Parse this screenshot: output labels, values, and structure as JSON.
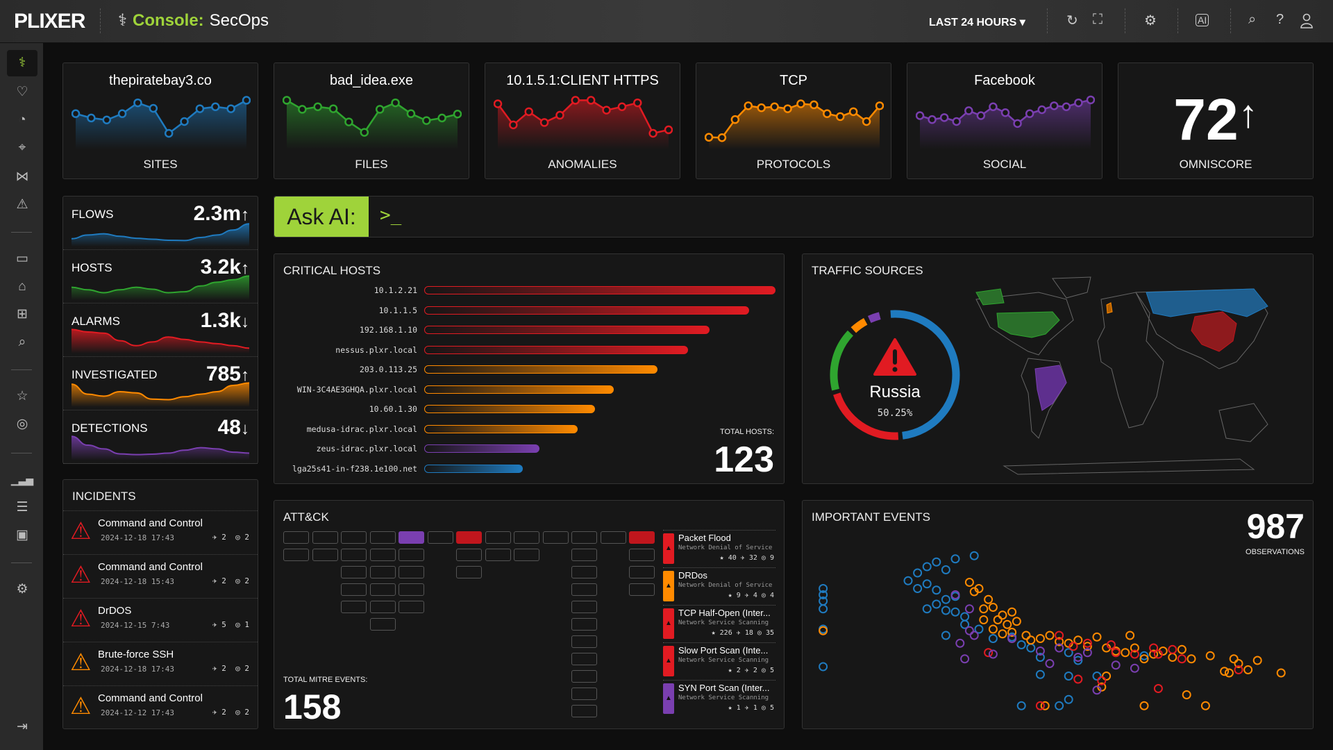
{
  "header": {
    "logo": "PLIXER",
    "console_prefix": "Console:",
    "console_name": "SecOps",
    "time_range": "LAST 24 HOURS ▾",
    "icons": [
      "refresh-icon",
      "fullscreen-icon",
      "gear-icon",
      "ai-chip-icon",
      "search-icon",
      "help-icon",
      "user-icon"
    ]
  },
  "sidebar": {
    "icons": [
      "stethoscope-icon",
      "heart-monitor-icon",
      "gauge-icon",
      "map-pin-icon",
      "network-icon",
      "warning-icon",
      "monitor-icon",
      "router-icon",
      "sitemap-icon",
      "search-icon",
      "star-icon",
      "radar-icon",
      "chart-icon",
      "list-icon",
      "calendar-icon",
      "user-gear-icon"
    ],
    "collapse": "⇥"
  },
  "tiles": [
    {
      "name": "thepiratebay3.co",
      "label": "SITES",
      "color": "#1f7bc0",
      "values": [
        160,
        138,
        128,
        160,
        215,
        187,
        60,
        120,
        185,
        195,
        185,
        228
      ]
    },
    {
      "name": "bad_idea.exe",
      "label": "FILES",
      "color": "#2fa52f",
      "values": [
        228,
        182,
        195,
        185,
        118,
        65,
        182,
        215,
        160,
        125,
        138,
        158
      ]
    },
    {
      "name": "10.1.5.1:CLIENT HTTPS",
      "label": "ANOMALIES",
      "color": "#e11b22",
      "values": [
        210,
        103,
        170,
        115,
        152,
        228,
        228,
        178,
        195,
        215,
        60,
        78
      ]
    },
    {
      "name": "TCP",
      "label": "PROTOCOLS",
      "color": "#ff8a00",
      "values": [
        40,
        38,
        130,
        200,
        190,
        195,
        185,
        210,
        205,
        160,
        145,
        170,
        120,
        200
      ]
    },
    {
      "name": "Facebook",
      "label": "SOCIAL",
      "color": "#7a3fb0",
      "values": [
        150,
        130,
        140,
        120,
        175,
        150,
        195,
        165,
        110,
        160,
        180,
        200,
        195,
        215,
        230
      ]
    }
  ],
  "omniscore": {
    "value": "72",
    "arrow": "↑",
    "label": "OMNISCORE"
  },
  "stats": [
    {
      "label": "FLOWS",
      "value": "2.3m",
      "arrow": "↑",
      "color": "#1f7bc0",
      "values": [
        20,
        35,
        40,
        30,
        22,
        18,
        14,
        13,
        25,
        35,
        55,
        80
      ]
    },
    {
      "label": "HOSTS",
      "value": "3.2k",
      "arrow": "↑",
      "color": "#2fa52f",
      "values": [
        40,
        30,
        18,
        30,
        40,
        32,
        18,
        22,
        45,
        60,
        70,
        85
      ]
    },
    {
      "label": "ALARMS",
      "value": "1.3k",
      "arrow": "↓",
      "color": "#e11b22",
      "values": [
        85,
        75,
        70,
        40,
        20,
        35,
        55,
        45,
        35,
        28,
        20,
        10
      ]
    },
    {
      "label": "INVESTIGATED",
      "value": "785",
      "arrow": "↑",
      "color": "#ff8a00",
      "values": [
        80,
        40,
        32,
        50,
        45,
        20,
        18,
        30,
        40,
        50,
        75,
        85
      ]
    },
    {
      "label": "DETECTIONS",
      "value": "48",
      "arrow": "↓",
      "color": "#7a3fb0",
      "values": [
        85,
        50,
        35,
        15,
        12,
        14,
        18,
        30,
        40,
        35,
        22,
        18
      ]
    }
  ],
  "incidents": {
    "title": "INCIDENTS",
    "items": [
      {
        "name": "Command and Control",
        "date": "2024-12-18 17:43",
        "severity": "#e11b22",
        "a": "2",
        "b": "2"
      },
      {
        "name": "Command and Control",
        "date": "2024-12-18 15:43",
        "severity": "#e11b22",
        "a": "2",
        "b": "2"
      },
      {
        "name": "DrDOS",
        "date": "2024-12-15 7:43",
        "severity": "#e11b22",
        "a": "5",
        "b": "1"
      },
      {
        "name": "Brute-force SSH",
        "date": "2024-12-18 17:43",
        "severity": "#ff8a00",
        "a": "2",
        "b": "2"
      },
      {
        "name": "Command and Control",
        "date": "2024-12-12 17:43",
        "severity": "#ff8a00",
        "a": "2",
        "b": "2"
      }
    ]
  },
  "ask_ai": {
    "label": "Ask AI:",
    "prompt": ">_"
  },
  "critical_hosts": {
    "title": "CRITICAL HOSTS",
    "total_label": "TOTAL HOSTS:",
    "total": "123",
    "hosts": [
      {
        "name": "10.1.2.21",
        "score": 100,
        "color": "#e11b22"
      },
      {
        "name": "10.1.1.5",
        "score": 92.5,
        "color": "#e11b22"
      },
      {
        "name": "192.168.1.10",
        "score": 81.3,
        "color": "#e11b22"
      },
      {
        "name": "nessus.plxr.local",
        "score": 75,
        "color": "#e11b22"
      },
      {
        "name": "203.0.113.25",
        "score": 66.4,
        "color": "#ff8a00"
      },
      {
        "name": "WIN-3C4AE3GHQA.plxr.local",
        "score": 54,
        "color": "#ff8a00"
      },
      {
        "name": "10.60.1.30",
        "score": 48.7,
        "color": "#ff8a00"
      },
      {
        "name": "medusa-idrac.plxr.local",
        "score": 43.6,
        "color": "#ff8a00"
      },
      {
        "name": "zeus-idrac.plxr.local",
        "score": 32.8,
        "color": "#7a3fb0"
      },
      {
        "name": "lga25s41-in-f238.1e100.net",
        "score": 28,
        "color": "#1f7bc0"
      }
    ]
  },
  "traffic_sources": {
    "title": "TRAFFIC SOURCES",
    "top_country": "Russia",
    "top_percent": "50.25%",
    "segments": [
      {
        "country": "Russia",
        "percent": 50.25,
        "color": "#1f7bc0"
      },
      {
        "country": "China",
        "percent": 22,
        "color": "#e11b22"
      },
      {
        "country": "United States",
        "percent": 17,
        "color": "#2fa52f"
      },
      {
        "country": "United Kingdom",
        "percent": 5,
        "color": "#ff8a00"
      },
      {
        "country": "Brazil",
        "percent": 4,
        "color": "#7a3fb0"
      }
    ]
  },
  "attack": {
    "title": "ATT&CK",
    "total_label": "TOTAL MITRE EVENTS:",
    "total": "158",
    "columns": [
      {
        "n": 2
      },
      {
        "n": 2
      },
      {
        "n": 5
      },
      {
        "n": 6
      },
      {
        "n": 5,
        "hot": "#7a3fb0"
      },
      {
        "n": 1
      },
      {
        "n": 3,
        "hot": "#c0161d"
      },
      {
        "n": 2
      },
      {
        "n": 2
      },
      {
        "n": 1
      },
      {
        "n": 11
      },
      {
        "n": 1
      },
      {
        "n": 4,
        "hot": "#c0161d"
      }
    ],
    "events": [
      {
        "name": "Packet Flood",
        "category": "Network Denial of Service",
        "color": "#e11b22",
        "stars": "40",
        "hits": "32",
        "targets": "9"
      },
      {
        "name": "DRDos",
        "category": "Network Denial of Service",
        "color": "#ff8a00",
        "stars": "9",
        "hits": "4",
        "targets": "4"
      },
      {
        "name": "TCP Half-Open (Inter...",
        "category": "Network Service Scanning",
        "color": "#e11b22",
        "stars": "226",
        "hits": "18",
        "targets": "35"
      },
      {
        "name": "Slow Port Scan (Inte...",
        "category": "Network Service Scanning",
        "color": "#e11b22",
        "stars": "2",
        "hits": "2",
        "targets": "5"
      },
      {
        "name": "SYN Port Scan (Inter...",
        "category": "Network Service Scanning",
        "color": "#7a3fb0",
        "stars": "1",
        "hits": "1",
        "targets": "5"
      }
    ]
  },
  "important_events": {
    "title": "IMPORTANT EVENTS",
    "count": "987",
    "count_label": "OBSERVATIONS"
  },
  "chart_data": {
    "type": "scatter",
    "title": "IMPORTANT EVENTS",
    "colors": [
      "#1f7bc0",
      "#ff8a00",
      "#e11b22",
      "#7a3fb0"
    ],
    "series": [
      {
        "points": [
          [
            2,
            78
          ],
          [
            2,
            74
          ],
          [
            2,
            70
          ],
          [
            2,
            65
          ],
          [
            2,
            52
          ],
          [
            2,
            28
          ],
          [
            20,
            83
          ],
          [
            22,
            88
          ],
          [
            24,
            92
          ],
          [
            26,
            95
          ],
          [
            28,
            90
          ],
          [
            30,
            97
          ],
          [
            34,
            99
          ],
          [
            22,
            78
          ],
          [
            24,
            81
          ],
          [
            26,
            77
          ],
          [
            28,
            71
          ],
          [
            30,
            73
          ],
          [
            26,
            68
          ],
          [
            28,
            64
          ],
          [
            30,
            63
          ],
          [
            24,
            65
          ],
          [
            32,
            60
          ],
          [
            28,
            48
          ],
          [
            32,
            55
          ],
          [
            35,
            52
          ],
          [
            42,
            47
          ],
          [
            38,
            46
          ],
          [
            44,
            42
          ],
          [
            46,
            40
          ],
          [
            48,
            34
          ],
          [
            54,
            37
          ],
          [
            56,
            32
          ],
          [
            48,
            23
          ],
          [
            54,
            22
          ],
          [
            60,
            22
          ],
          [
            44,
            3
          ],
          [
            52,
            3
          ],
          [
            54,
            7
          ],
          [
            70,
            35
          ]
        ]
      },
      {
        "points": [
          [
            2,
            51
          ],
          [
            33,
            82
          ],
          [
            34,
            76
          ],
          [
            35,
            78
          ],
          [
            37,
            71
          ],
          [
            36,
            65
          ],
          [
            38,
            66
          ],
          [
            40,
            61
          ],
          [
            42,
            63
          ],
          [
            39,
            58
          ],
          [
            41,
            55
          ],
          [
            43,
            57
          ],
          [
            36,
            58
          ],
          [
            38,
            52
          ],
          [
            40,
            49
          ],
          [
            42,
            50
          ],
          [
            45,
            48
          ],
          [
            46,
            45
          ],
          [
            48,
            46
          ],
          [
            50,
            48
          ],
          [
            52,
            44
          ],
          [
            54,
            43
          ],
          [
            56,
            45
          ],
          [
            58,
            41
          ],
          [
            60,
            47
          ],
          [
            62,
            40
          ],
          [
            64,
            38
          ],
          [
            66,
            37
          ],
          [
            67,
            48
          ],
          [
            68,
            40
          ],
          [
            70,
            33
          ],
          [
            72,
            36
          ],
          [
            74,
            38
          ],
          [
            76,
            34
          ],
          [
            78,
            39
          ],
          [
            80,
            33
          ],
          [
            84,
            35
          ],
          [
            89,
            33
          ],
          [
            90,
            30
          ],
          [
            92,
            26
          ],
          [
            94,
            32
          ],
          [
            99,
            24
          ],
          [
            88,
            24
          ],
          [
            87,
            25
          ],
          [
            62,
            22
          ],
          [
            61,
            15
          ],
          [
            79,
            10
          ],
          [
            70,
            3
          ],
          [
            83,
            3
          ],
          [
            49,
            3
          ]
        ]
      },
      {
        "points": [
          [
            37,
            37
          ],
          [
            52,
            48
          ],
          [
            55,
            41
          ],
          [
            58,
            43
          ],
          [
            61,
            19
          ],
          [
            63,
            42
          ],
          [
            64,
            37
          ],
          [
            68,
            36
          ],
          [
            72,
            40
          ],
          [
            73,
            36
          ],
          [
            76,
            39
          ],
          [
            78,
            33
          ],
          [
            73,
            14
          ],
          [
            48,
            3
          ],
          [
            56,
            20
          ],
          [
            90,
            26
          ]
        ]
      },
      {
        "points": [
          [
            30,
            74
          ],
          [
            33,
            65
          ],
          [
            33,
            51
          ],
          [
            34,
            48
          ],
          [
            31,
            43
          ],
          [
            32,
            33
          ],
          [
            38,
            36
          ],
          [
            42,
            46
          ],
          [
            48,
            38
          ],
          [
            52,
            40
          ],
          [
            56,
            34
          ],
          [
            58,
            37
          ],
          [
            50,
            30
          ],
          [
            64,
            29
          ],
          [
            68,
            27
          ],
          [
            60,
            13
          ]
        ]
      }
    ]
  }
}
